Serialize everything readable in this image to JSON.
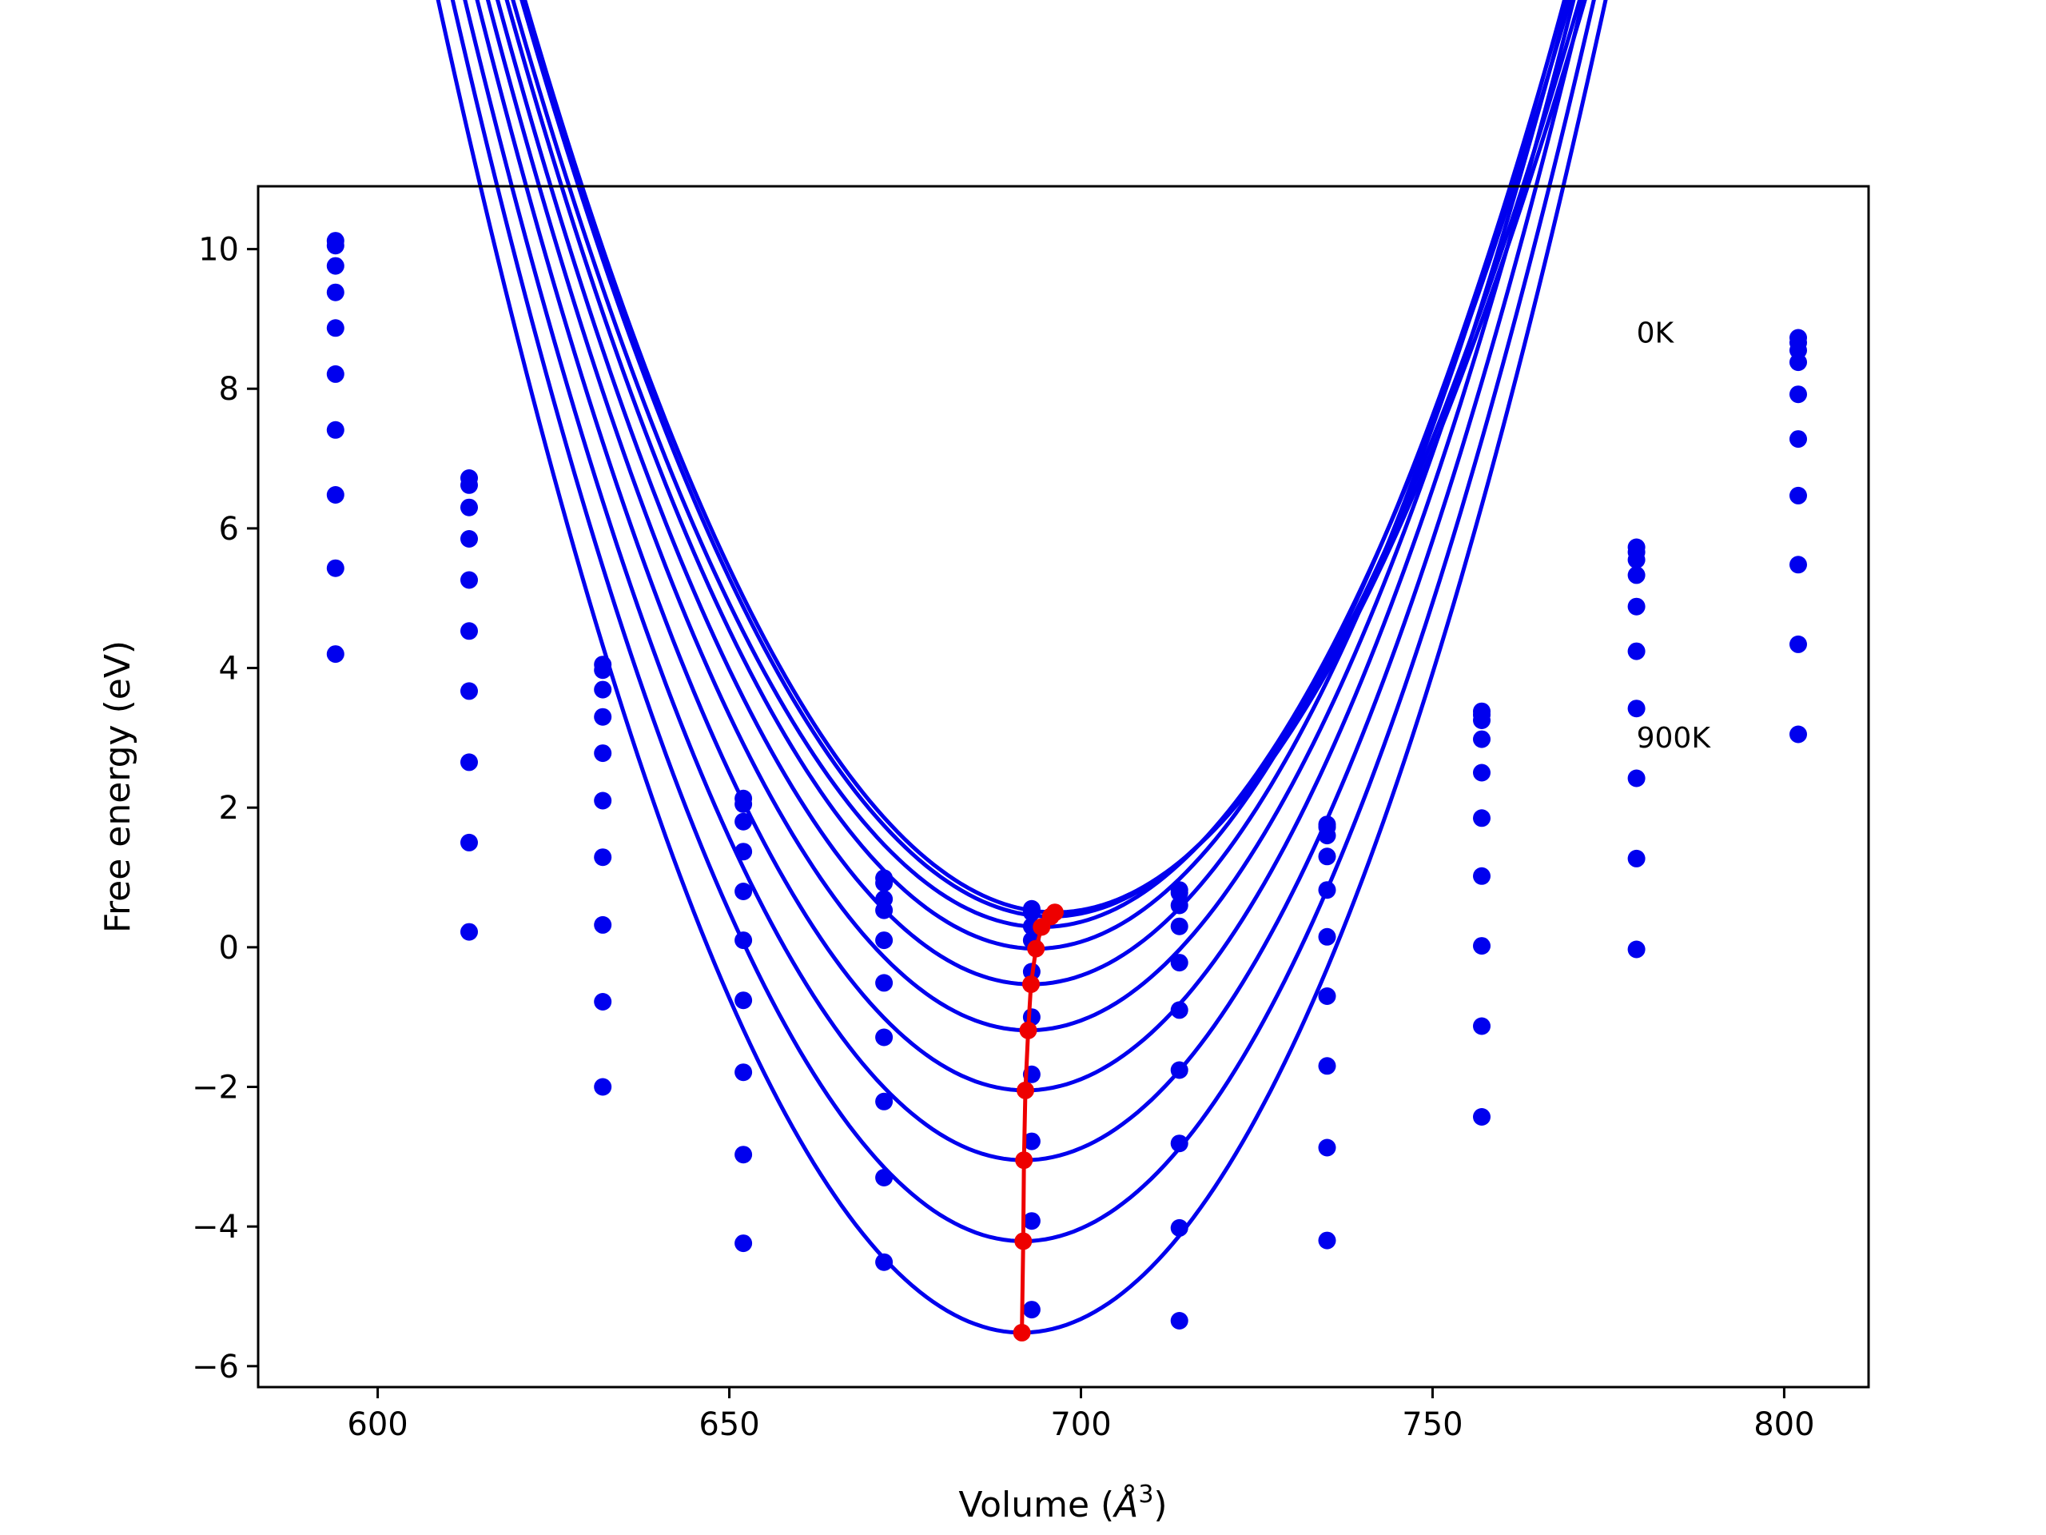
{
  "chart_data": {
    "type": "line",
    "title": "",
    "xlabel": "Volume (",
    "xlabel_symbol": "Å",
    "xlabel_sup": "3",
    "xlabel_close": ")",
    "ylabel": "Free energy (eV)",
    "xlim": [
      583,
      812
    ],
    "ylim": [
      -6.3,
      10.9
    ],
    "grid": false,
    "xticks": [
      600,
      650,
      700,
      750,
      800
    ],
    "xtick_labels": [
      "600",
      "650",
      "700",
      "750",
      "800"
    ],
    "yticks": [
      -6,
      -4,
      -2,
      0,
      2,
      4,
      6,
      8,
      10
    ],
    "ytick_labels": [
      "−6",
      "−4",
      "−2",
      "0",
      "2",
      "4",
      "6",
      "8",
      "10"
    ],
    "annotations": [
      {
        "text": "0K",
        "x": 779,
        "y": 8.8
      },
      {
        "text": "900K",
        "x": 779,
        "y": 3.0
      }
    ],
    "colors": {
      "fit": "#0000ee",
      "points": "#0000ee",
      "minimum": "#ee0000"
    },
    "volumes": [
      594,
      613,
      632,
      652,
      672,
      693,
      714,
      735,
      757,
      779,
      802
    ],
    "point_series": [
      [
        10.12,
        6.72,
        4.05,
        2.13,
        0.99,
        0.55,
        0.82,
        1.76,
        3.38,
        5.73,
        8.73
      ],
      [
        10.05,
        6.62,
        3.97,
        2.05,
        0.92,
        0.5,
        0.78,
        1.72,
        3.33,
        5.66,
        8.66
      ],
      [
        9.76,
        6.3,
        3.69,
        1.8,
        0.69,
        0.3,
        0.6,
        1.6,
        3.25,
        5.55,
        8.55
      ],
      [
        9.38,
        5.85,
        3.3,
        1.37,
        0.53,
        0.1,
        0.3,
        1.3,
        2.98,
        5.33,
        8.38
      ],
      [
        8.87,
        5.26,
        2.78,
        0.8,
        0.1,
        -0.35,
        -0.22,
        0.82,
        2.5,
        4.88,
        7.92
      ],
      [
        8.21,
        4.53,
        2.1,
        0.1,
        -0.51,
        -1.0,
        -0.9,
        0.15,
        1.85,
        4.24,
        7.28
      ],
      [
        7.41,
        3.67,
        1.29,
        -0.76,
        -1.29,
        -1.82,
        -1.76,
        -0.7,
        1.02,
        3.42,
        6.47
      ],
      [
        6.48,
        2.65,
        0.32,
        -1.79,
        -2.21,
        -2.78,
        -2.81,
        -1.7,
        0.02,
        2.42,
        5.48
      ],
      [
        5.43,
        1.5,
        -0.78,
        -2.97,
        -3.3,
        -3.92,
        -4.02,
        -2.87,
        -1.13,
        1.27,
        4.34
      ],
      [
        4.2,
        0.22,
        -2.0,
        -4.24,
        -4.51,
        -5.19,
        -5.35,
        -4.2,
        -2.43,
        -0.03,
        3.05
      ]
    ],
    "fit_series": [
      {
        "a": 0.0023,
        "v0": 696.3,
        "emin": 0.5
      },
      {
        "a": 0.00232,
        "v0": 695.7,
        "emin": 0.44
      },
      {
        "a": 0.00235,
        "v0": 694.4,
        "emin": 0.29
      },
      {
        "a": 0.0024,
        "v0": 693.6,
        "emin": -0.02
      },
      {
        "a": 0.00245,
        "v0": 692.9,
        "emin": -0.53
      },
      {
        "a": 0.0025,
        "v0": 692.5,
        "emin": -1.19
      },
      {
        "a": 0.00257,
        "v0": 692.1,
        "emin": -2.05
      },
      {
        "a": 0.00263,
        "v0": 691.9,
        "emin": -3.05
      },
      {
        "a": 0.0027,
        "v0": 691.8,
        "emin": -4.21
      },
      {
        "a": 0.00277,
        "v0": 691.6,
        "emin": -5.52
      }
    ],
    "minimum_line": {
      "x": [
        696.3,
        695.7,
        694.4,
        693.6,
        692.9,
        692.5,
        692.1,
        691.9,
        691.8,
        691.6
      ],
      "y": [
        0.5,
        0.44,
        0.29,
        -0.02,
        -0.53,
        -1.19,
        -2.05,
        -3.05,
        -4.21,
        -5.52
      ]
    }
  }
}
